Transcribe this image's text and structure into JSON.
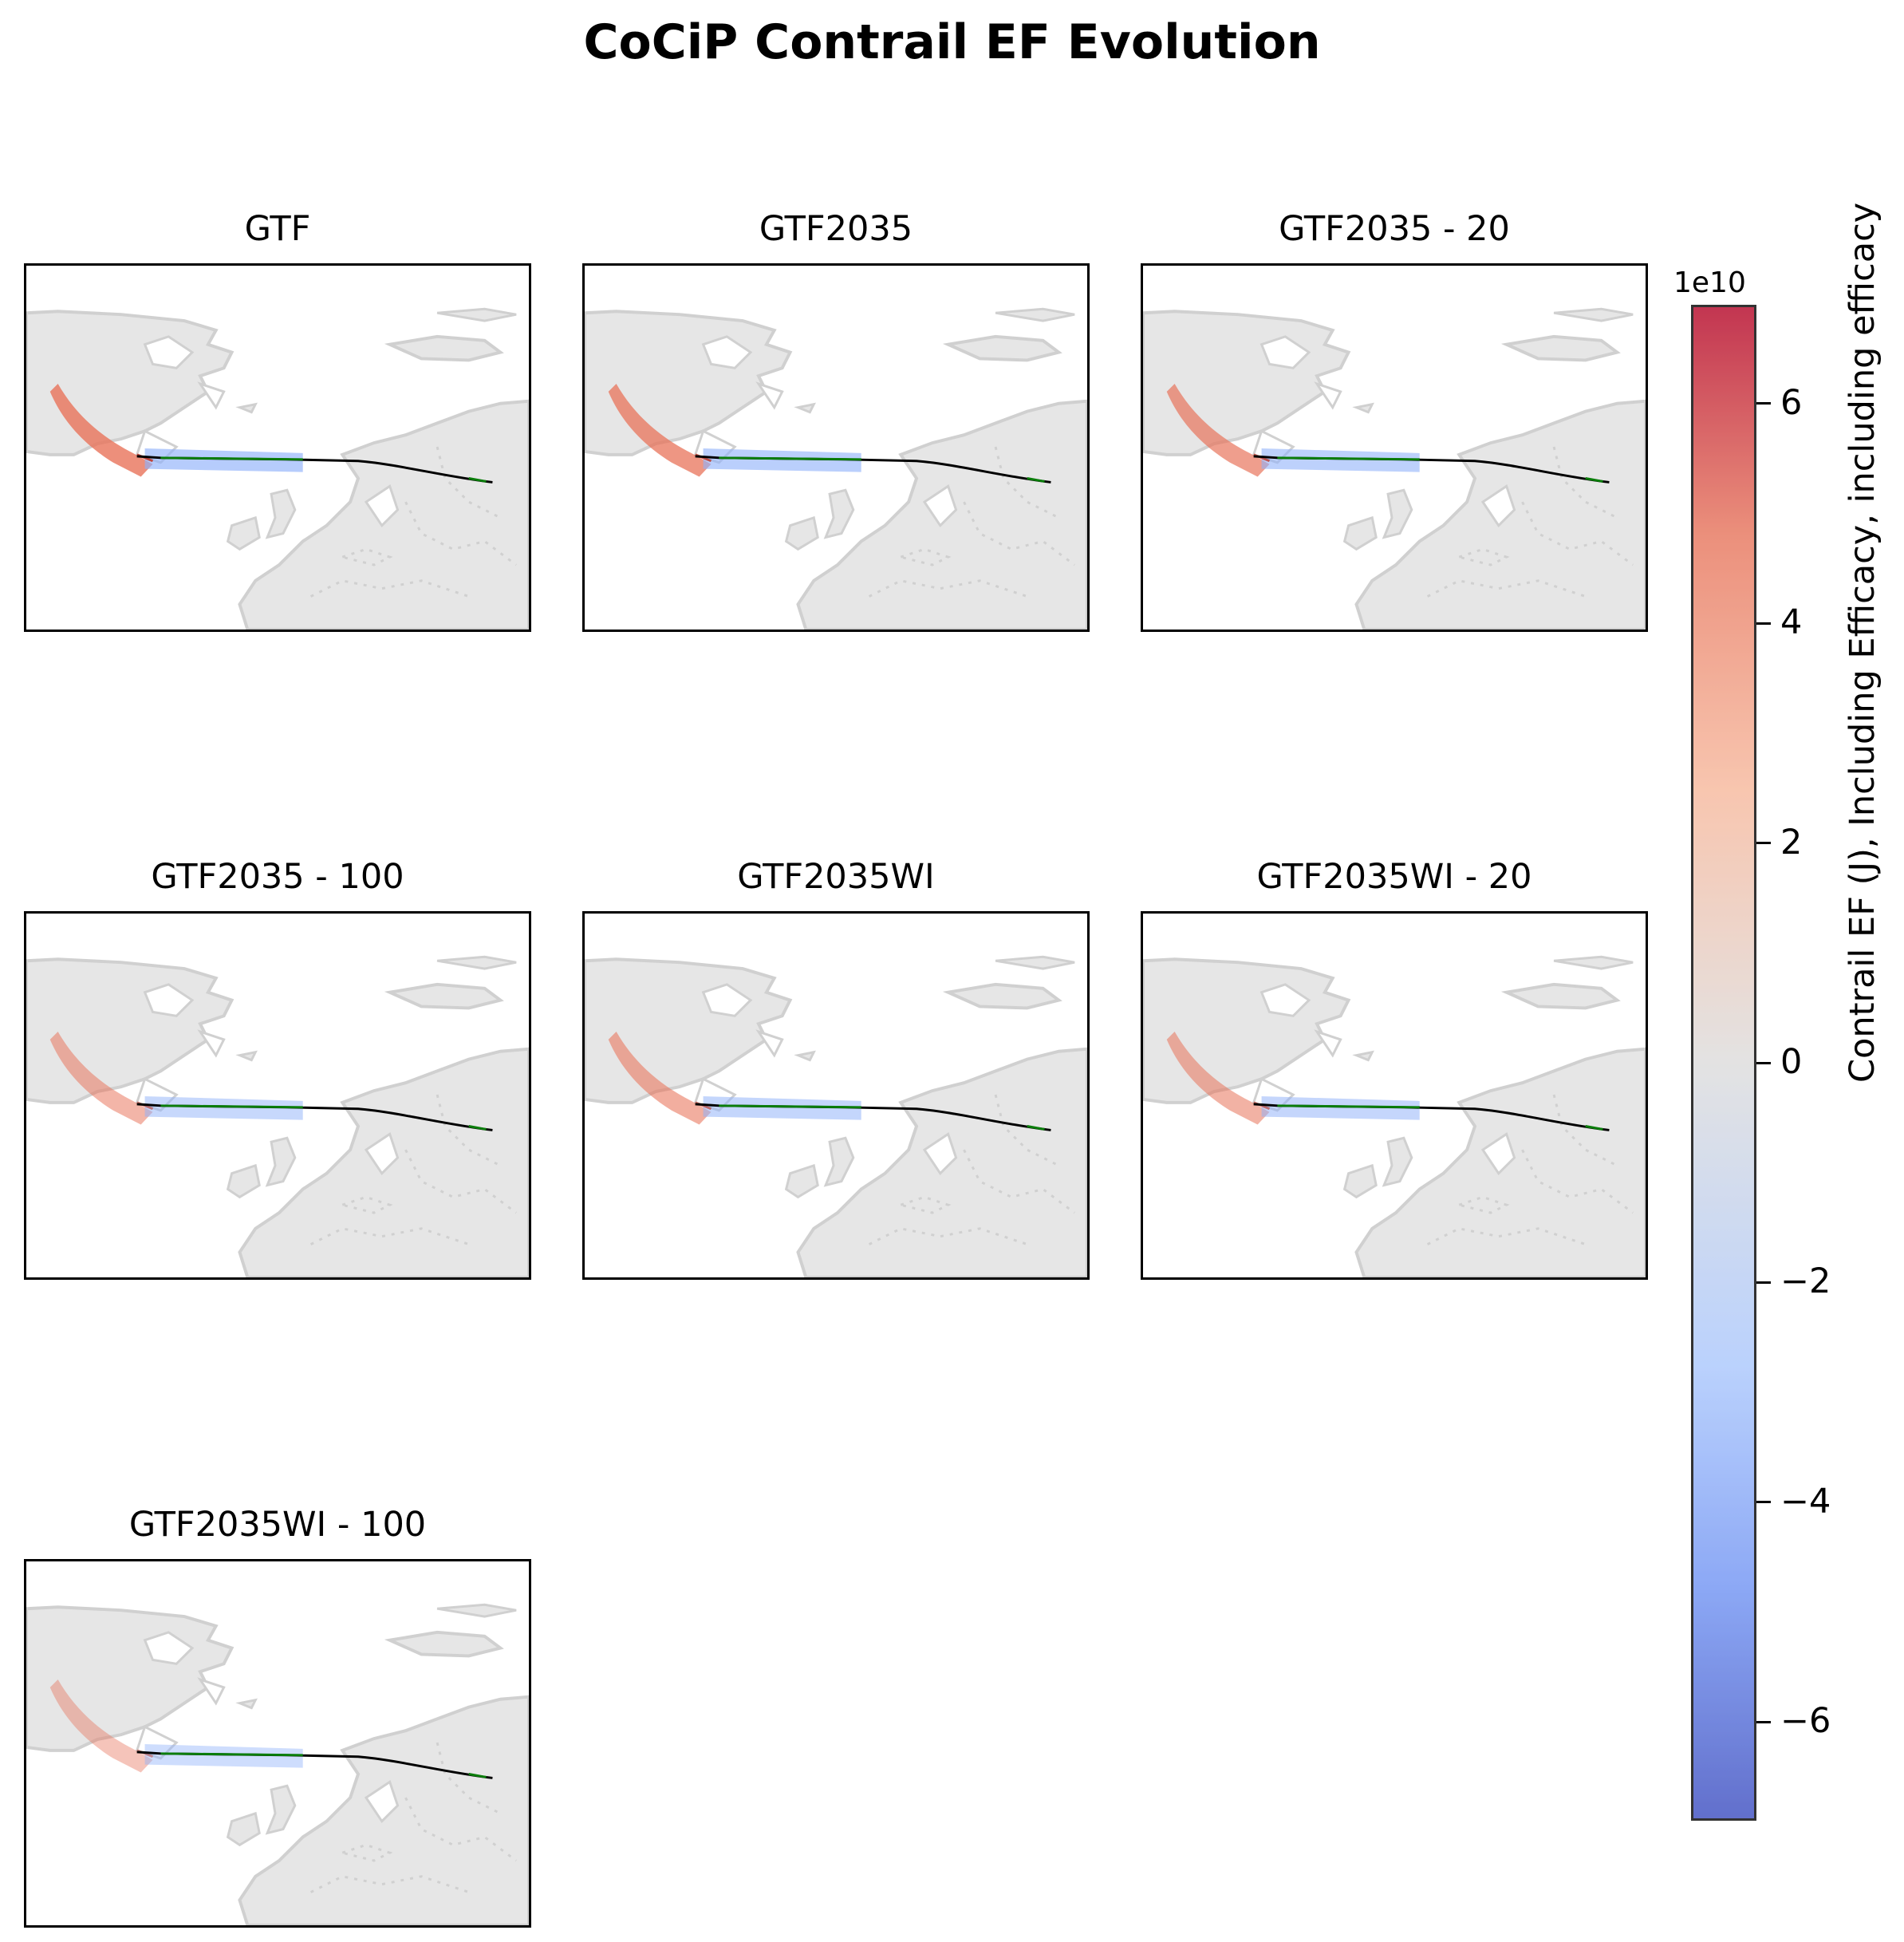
{
  "figure": {
    "title": "CoCiP Contrail EF Evolution"
  },
  "panels": [
    {
      "title": "GTF",
      "intensity": 1.0
    },
    {
      "title": "GTF2035",
      "intensity": 0.9
    },
    {
      "title": "GTF2035 - 20",
      "intensity": 0.8
    },
    {
      "title": "GTF2035 - 100",
      "intensity": 0.5
    },
    {
      "title": "GTF2035WI",
      "intensity": 0.6
    },
    {
      "title": "GTF2035WI - 20",
      "intensity": 0.55
    },
    {
      "title": "GTF2035WI - 100",
      "intensity": 0.3
    }
  ],
  "colorbar": {
    "label": "Contrail EF (J), Including Efficacy, including efficacy",
    "exponent": "1e10",
    "range": [
      -6.9,
      6.9
    ],
    "colormap": "coolwarm",
    "ticks": [
      "−6",
      "−4",
      "−2",
      "0",
      "2",
      "4",
      "6"
    ],
    "tick_values": [
      -6,
      -4,
      -2,
      0,
      2,
      4,
      6
    ]
  },
  "map_colors": {
    "land": "#e6e6e6",
    "coast": "#d0d0d0",
    "flight_path": "#000000",
    "contrail_segment": "#0a7d0a",
    "warming": "#e8735a",
    "cooling": "#8fb1fa"
  }
}
